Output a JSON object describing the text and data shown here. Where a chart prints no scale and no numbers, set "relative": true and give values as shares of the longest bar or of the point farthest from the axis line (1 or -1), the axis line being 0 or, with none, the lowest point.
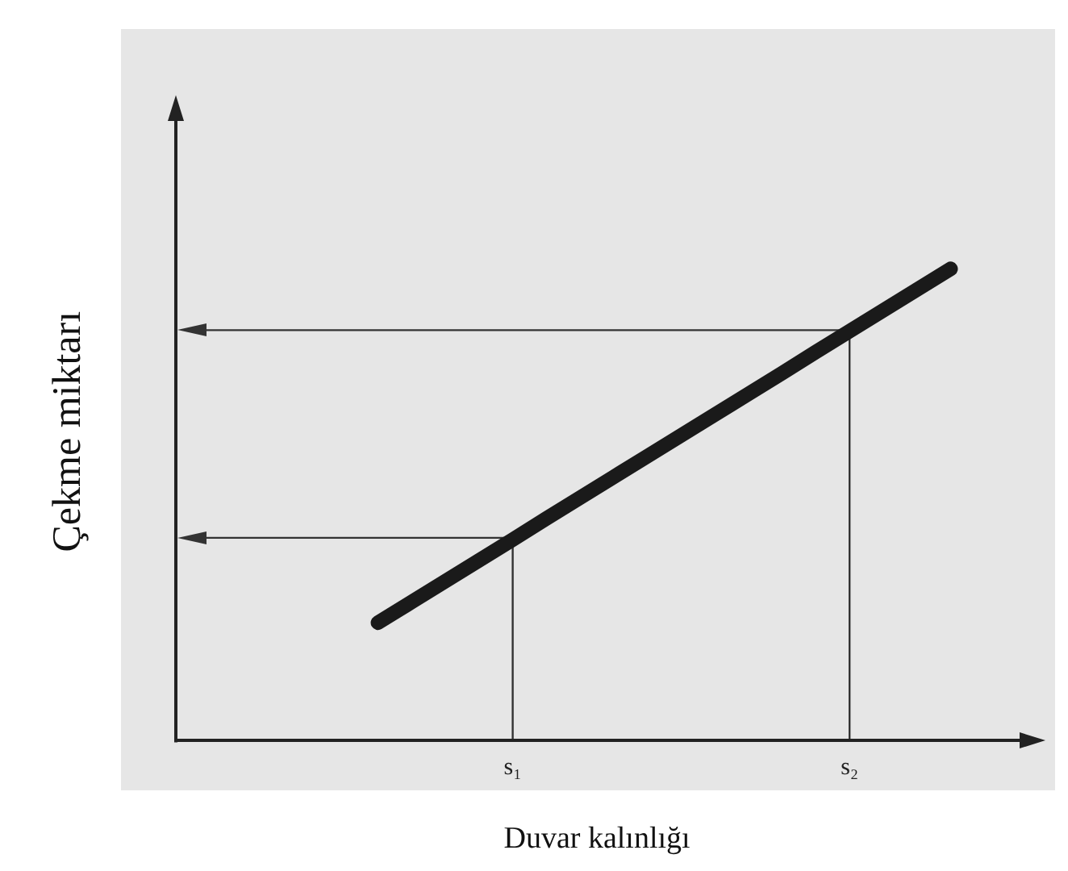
{
  "chart_data": {
    "type": "line",
    "relative": true,
    "xlabel": "Duvar kalınlığı",
    "ylabel": "Çekme miktarı",
    "tick_labels": "x",
    "grid": false,
    "legend": false,
    "marker": "none",
    "line_style": "solid",
    "categories": [
      null,
      null,
      null,
      null,
      null,
      null,
      null,
      null,
      null,
      null,
      "s₁",
      null,
      null,
      null,
      null,
      null,
      null,
      null,
      null,
      null,
      "s₂",
      null,
      null,
      null,
      null,
      null
    ],
    "series": [
      {
        "color": "#1a1a1a",
        "values": [
          null,
          null,
          null,
          null,
          null,
          null,
          0.25,
          0.294,
          0.338,
          0.382,
          0.426,
          0.471,
          0.515,
          0.559,
          0.603,
          0.647,
          0.691,
          0.735,
          0.779,
          0.824,
          0.868,
          0.912,
          0.956,
          1,
          null,
          null
        ]
      }
    ],
    "ref_lines": [
      {
        "axis": "x",
        "value": "s₁",
        "color": "#333333"
      },
      {
        "axis": "x",
        "value": "s₂",
        "color": "#333333"
      },
      {
        "axis": "y",
        "value": 0.43,
        "color": "#333333"
      },
      {
        "axis": "y",
        "value": 0.87,
        "color": "#333333"
      }
    ]
  }
}
